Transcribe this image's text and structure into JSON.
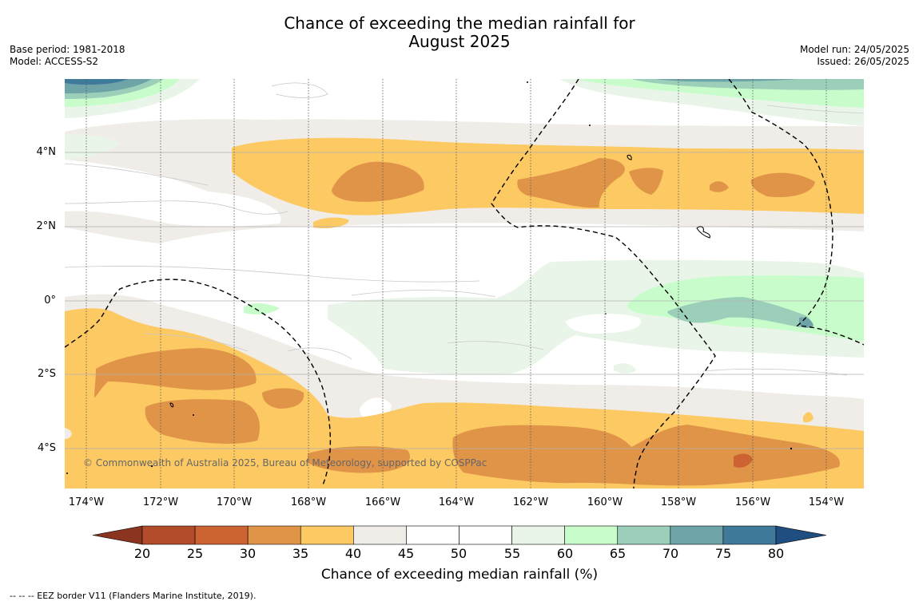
{
  "title": {
    "line1": "Chance of exceeding the median rainfall for",
    "line2": "August 2025"
  },
  "meta": {
    "base_period": "Base period: 1981-2018",
    "model": "Model: ACCESS-S2",
    "model_run": "Model run: 24/05/2025",
    "issued": "Issued: 26/05/2025"
  },
  "copyright": "© Commonwealth of Australia 2025, Bureau of Meteorology, supported by COSPPac",
  "axes": {
    "lat_labels": [
      "4°N",
      "2°N",
      "0°",
      "2°S",
      "4°S"
    ],
    "lon_labels": [
      "174°W",
      "172°W",
      "170°W",
      "168°W",
      "166°W",
      "164°W",
      "162°W",
      "160°W",
      "158°W",
      "156°W",
      "154°W"
    ]
  },
  "colorbar": {
    "ticks": [
      "20",
      "25",
      "30",
      "35",
      "40",
      "45",
      "50",
      "55",
      "60",
      "65",
      "70",
      "75",
      "80"
    ],
    "colors": [
      "#b24c2a",
      "#cd6333",
      "#e09448",
      "#fdc963",
      "#f0ede8",
      "#ffffff",
      "#ffffff",
      "#eaf5e9",
      "#c8fdcb",
      "#9ccfb9",
      "#6ea3a8",
      "#3f7a9b"
    ],
    "below_color": "#8b3520",
    "above_color": "#1f4e80",
    "label": "Chance of exceeding median rainfall (%)"
  },
  "footnote": "--  --  -- EEZ border V11 (Flanders Marine Institute, 2019)."
}
